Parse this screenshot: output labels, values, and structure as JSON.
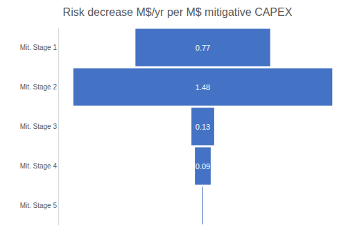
{
  "chart_data": {
    "type": "funnel",
    "title": "Risk decrease M$/yr per M$ mitigative CAPEX",
    "categories": [
      "Mit. Stage 1",
      "Mit. Stage 2",
      "Mit. Stage 3",
      "Mit. Stage 4",
      "Mit. Stage 5"
    ],
    "values": [
      0.77,
      1.48,
      0.13,
      0.09,
      0.003
    ],
    "value_labels": [
      "0.77",
      "1.48",
      "0.13",
      "0.09",
      null
    ],
    "color": "#4472c4",
    "data_labels": true,
    "tick_labels": "y",
    "grid": false
  }
}
